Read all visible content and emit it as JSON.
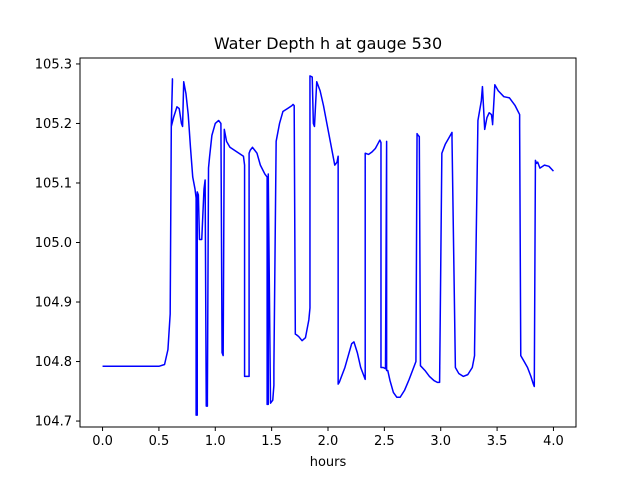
{
  "chart_data": {
    "type": "line",
    "title": "Water Depth h at gauge 530",
    "xlabel": "hours",
    "ylabel": "",
    "xlim": [
      -0.2,
      4.2
    ],
    "ylim": [
      104.69,
      105.31
    ],
    "xticks": [
      0.0,
      0.5,
      1.0,
      1.5,
      2.0,
      2.5,
      3.0,
      3.5,
      4.0
    ],
    "xtick_labels": [
      "0.0",
      "0.5",
      "1.0",
      "1.5",
      "2.0",
      "2.5",
      "3.0",
      "3.5",
      "4.0"
    ],
    "yticks": [
      104.7,
      104.8,
      104.9,
      105.0,
      105.1,
      105.2,
      105.3
    ],
    "ytick_labels": [
      "104.7",
      "104.8",
      "104.9",
      "105.0",
      "105.1",
      "105.2",
      "105.3"
    ],
    "grid": false,
    "legend": "none",
    "series": [
      {
        "color": "#0000ff",
        "x": [
          0.0,
          0.2,
          0.4,
          0.5,
          0.55,
          0.58,
          0.6,
          0.61,
          0.62,
          0.62,
          0.61,
          0.63,
          0.66,
          0.68,
          0.7,
          0.71,
          0.72,
          0.74,
          0.76,
          0.78,
          0.8,
          0.82,
          0.83,
          0.83,
          0.84,
          0.84,
          0.85,
          0.86,
          0.88,
          0.9,
          0.91,
          0.92,
          0.93,
          0.93,
          0.94,
          0.95,
          0.97,
          1.0,
          1.03,
          1.05,
          1.06,
          1.06,
          1.07,
          1.08,
          1.08,
          1.09,
          1.1,
          1.13,
          1.17,
          1.21,
          1.25,
          1.26,
          1.26,
          1.27,
          1.3,
          1.3,
          1.31,
          1.33,
          1.37,
          1.4,
          1.44,
          1.46,
          1.46,
          1.47,
          1.47,
          1.49,
          1.51,
          1.52,
          1.52,
          1.54,
          1.57,
          1.6,
          1.64,
          1.68,
          1.69,
          1.7,
          1.71,
          1.71,
          1.72,
          1.74,
          1.77,
          1.8,
          1.83,
          1.84,
          1.84,
          1.86,
          1.86,
          1.87,
          1.88,
          1.9,
          1.93,
          1.96,
          1.99,
          2.03,
          2.06,
          2.08,
          2.09,
          2.09,
          2.1,
          2.12,
          2.15,
          2.18,
          2.21,
          2.23,
          2.26,
          2.29,
          2.32,
          2.33,
          2.33,
          2.36,
          2.39,
          2.42,
          2.44,
          2.46,
          2.47,
          2.47,
          2.49,
          2.51,
          2.52,
          2.52,
          2.53,
          2.53,
          2.55,
          2.58,
          2.61,
          2.64,
          2.68,
          2.72,
          2.76,
          2.78,
          2.79,
          2.79,
          2.8,
          2.81,
          2.82,
          2.82,
          2.86,
          2.9,
          2.94,
          2.97,
          2.99,
          2.99,
          3.01,
          3.04,
          3.07,
          3.1,
          3.1,
          3.13,
          3.16,
          3.2,
          3.24,
          3.28,
          3.3,
          3.3,
          3.33,
          3.36,
          3.37,
          3.37,
          3.39,
          3.41,
          3.43,
          3.45,
          3.46,
          3.46,
          3.48,
          3.51,
          3.56,
          3.61,
          3.66,
          3.7,
          3.7,
          3.71,
          3.74,
          3.77,
          3.8,
          3.82,
          3.83,
          3.83,
          3.84,
          3.85,
          3.86,
          3.88,
          3.92,
          3.96,
          4.0
        ],
        "y": [
          104.792,
          104.792,
          104.792,
          104.792,
          104.795,
          104.82,
          104.88,
          105.2,
          105.27,
          105.275,
          105.195,
          105.21,
          105.228,
          105.225,
          105.2,
          105.195,
          105.27,
          105.25,
          105.215,
          105.16,
          105.11,
          105.09,
          105.075,
          104.71,
          104.71,
          105.085,
          105.08,
          105.005,
          105.005,
          105.09,
          105.105,
          104.725,
          104.725,
          104.74,
          105.125,
          105.145,
          105.18,
          105.2,
          105.205,
          105.2,
          104.82,
          104.815,
          104.81,
          105.19,
          105.19,
          105.18,
          105.17,
          105.16,
          105.155,
          105.15,
          105.145,
          105.13,
          104.775,
          104.775,
          104.775,
          105.15,
          105.155,
          105.16,
          105.15,
          105.13,
          105.115,
          105.11,
          104.728,
          104.728,
          105.115,
          104.73,
          104.735,
          104.76,
          104.79,
          105.17,
          105.2,
          105.22,
          105.225,
          105.23,
          105.232,
          105.23,
          104.848,
          104.846,
          104.845,
          104.842,
          104.835,
          104.84,
          104.87,
          104.89,
          105.28,
          105.278,
          105.278,
          105.2,
          105.195,
          105.27,
          105.255,
          105.23,
          105.2,
          105.16,
          105.13,
          105.135,
          105.145,
          104.762,
          104.765,
          104.775,
          104.79,
          104.81,
          104.83,
          104.833,
          104.815,
          104.79,
          104.775,
          104.77,
          105.15,
          105.148,
          105.152,
          105.158,
          105.165,
          105.172,
          105.168,
          104.79,
          104.79,
          104.788,
          105.17,
          104.785,
          104.785,
          104.785,
          104.768,
          104.748,
          104.74,
          104.74,
          104.752,
          104.77,
          104.79,
          104.8,
          105.183,
          105.183,
          105.18,
          105.178,
          104.795,
          104.793,
          104.785,
          104.775,
          104.768,
          104.765,
          104.765,
          104.765,
          105.15,
          105.165,
          105.175,
          105.185,
          105.175,
          104.79,
          104.78,
          104.775,
          104.778,
          104.79,
          104.81,
          104.82,
          105.205,
          105.238,
          105.262,
          105.262,
          105.19,
          105.21,
          105.218,
          105.215,
          105.2,
          105.198,
          105.265,
          105.255,
          105.245,
          105.243,
          105.23,
          105.215,
          105.195,
          104.81,
          104.8,
          104.79,
          104.775,
          104.763,
          104.758,
          104.758,
          105.138,
          105.133,
          105.135,
          105.125,
          105.13,
          105.128,
          105.12
        ]
      }
    ]
  }
}
